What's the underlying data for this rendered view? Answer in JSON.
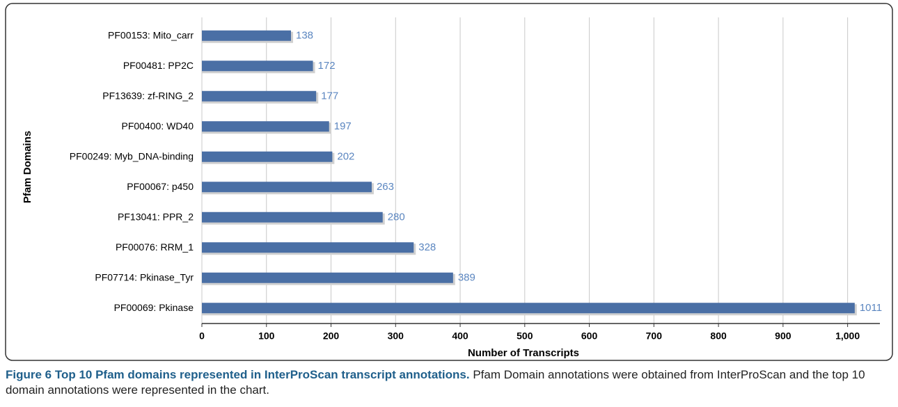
{
  "chart_data": {
    "type": "bar",
    "orientation": "horizontal",
    "y_label": "Pfam Domains",
    "x_label": "Number of Transcripts",
    "categories": [
      "PF00153: Mito_carr",
      "PF00481: PP2C",
      "PF13639: zf-RING_2",
      "PF00400: WD40",
      "PF00249: Myb_DNA-binding",
      "PF00067: p450",
      "PF13041: PPR_2",
      "PF00076: RRM_1",
      "PF07714: Pkinase_Tyr",
      "PF00069: Pkinase"
    ],
    "values": [
      138,
      172,
      177,
      197,
      202,
      263,
      280,
      328,
      389,
      1011
    ],
    "color": "#4a6fa5",
    "label_color": "#5b86c0",
    "xlim": [
      0,
      1050
    ],
    "xticks": [
      0,
      100,
      200,
      300,
      400,
      500,
      600,
      700,
      800,
      900,
      {
        "value": 1000,
        "label": "1,000"
      }
    ],
    "grid": true,
    "caption": {
      "title": "Figure 6 Top 10 Pfam domains represented in InterProScan transcript annotations.",
      "text": "Pfam Domain annotations were obtained from InterProScan and the top 10 domain annotations were represented in the chart."
    }
  }
}
